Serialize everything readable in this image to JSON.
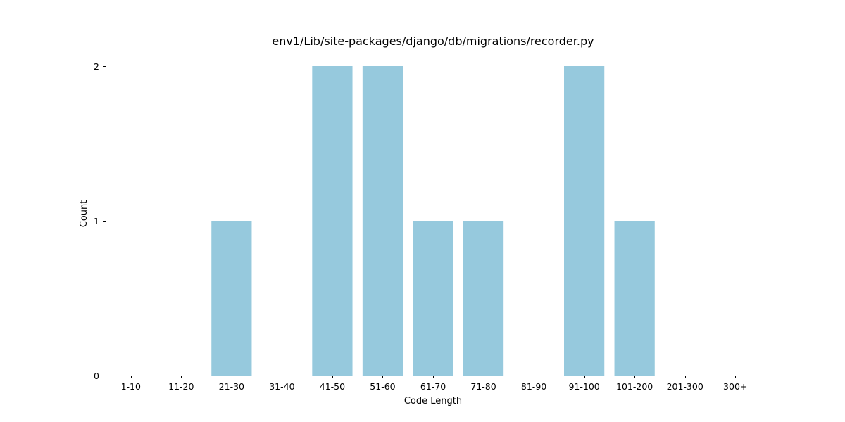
{
  "chart_data": {
    "type": "bar",
    "title": "env1/Lib/site-packages/django/db/migrations/recorder.py",
    "xlabel": "Code Length",
    "ylabel": "Count",
    "categories": [
      "1-10",
      "11-20",
      "21-30",
      "31-40",
      "41-50",
      "51-60",
      "61-70",
      "71-80",
      "81-90",
      "91-100",
      "101-200",
      "201-300",
      "300+"
    ],
    "values": [
      0,
      0,
      1,
      0,
      2,
      2,
      1,
      1,
      0,
      2,
      1,
      0,
      0
    ],
    "ylim": [
      0,
      2.1
    ],
    "yticks": [
      0,
      1,
      2
    ],
    "bar_color": "#96c9dd",
    "grid": false,
    "legend": "none"
  }
}
